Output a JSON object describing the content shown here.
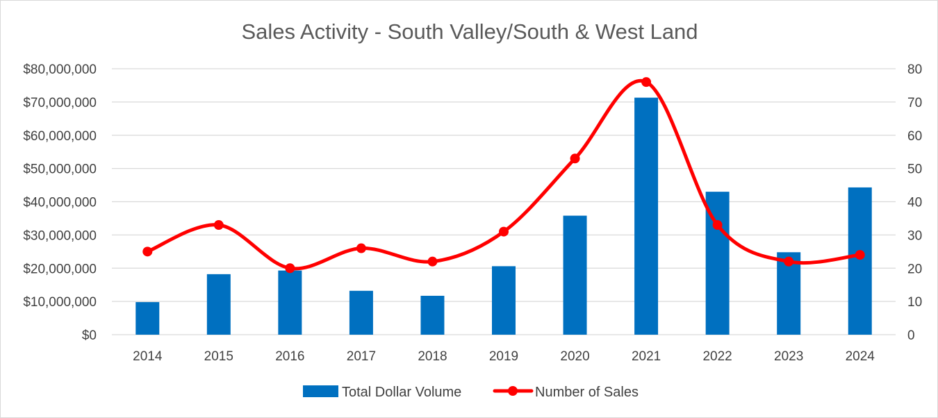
{
  "chart_data": {
    "type": "bar",
    "title": "Sales Activity - South Valley/South & West Land",
    "categories": [
      "2014",
      "2015",
      "2016",
      "2017",
      "2018",
      "2019",
      "2020",
      "2021",
      "2022",
      "2023",
      "2024"
    ],
    "series": [
      {
        "name": "Total Dollar Volume",
        "type": "bar",
        "axis": "left",
        "color": "#0070C0",
        "values": [
          9800000,
          18200000,
          19300000,
          13200000,
          11700000,
          20600000,
          35800000,
          71300000,
          43000000,
          24800000,
          44300000
        ]
      },
      {
        "name": "Number of Sales",
        "type": "line",
        "axis": "right",
        "smooth": true,
        "markers": true,
        "color": "#FF0000",
        "values": [
          25,
          33,
          20,
          26,
          22,
          31,
          53,
          76,
          33,
          22,
          24
        ]
      }
    ],
    "y_left": {
      "min": 0,
      "max": 80000000,
      "ticks": [
        "$0",
        "$10,000,000",
        "$20,000,000",
        "$30,000,000",
        "$40,000,000",
        "$50,000,000",
        "$60,000,000",
        "$70,000,000",
        "$80,000,000"
      ]
    },
    "y_right": {
      "min": 0,
      "max": 80,
      "ticks": [
        "0",
        "10",
        "20",
        "30",
        "40",
        "50",
        "60",
        "70",
        "80"
      ]
    },
    "grid": true,
    "legend_position": "bottom"
  }
}
